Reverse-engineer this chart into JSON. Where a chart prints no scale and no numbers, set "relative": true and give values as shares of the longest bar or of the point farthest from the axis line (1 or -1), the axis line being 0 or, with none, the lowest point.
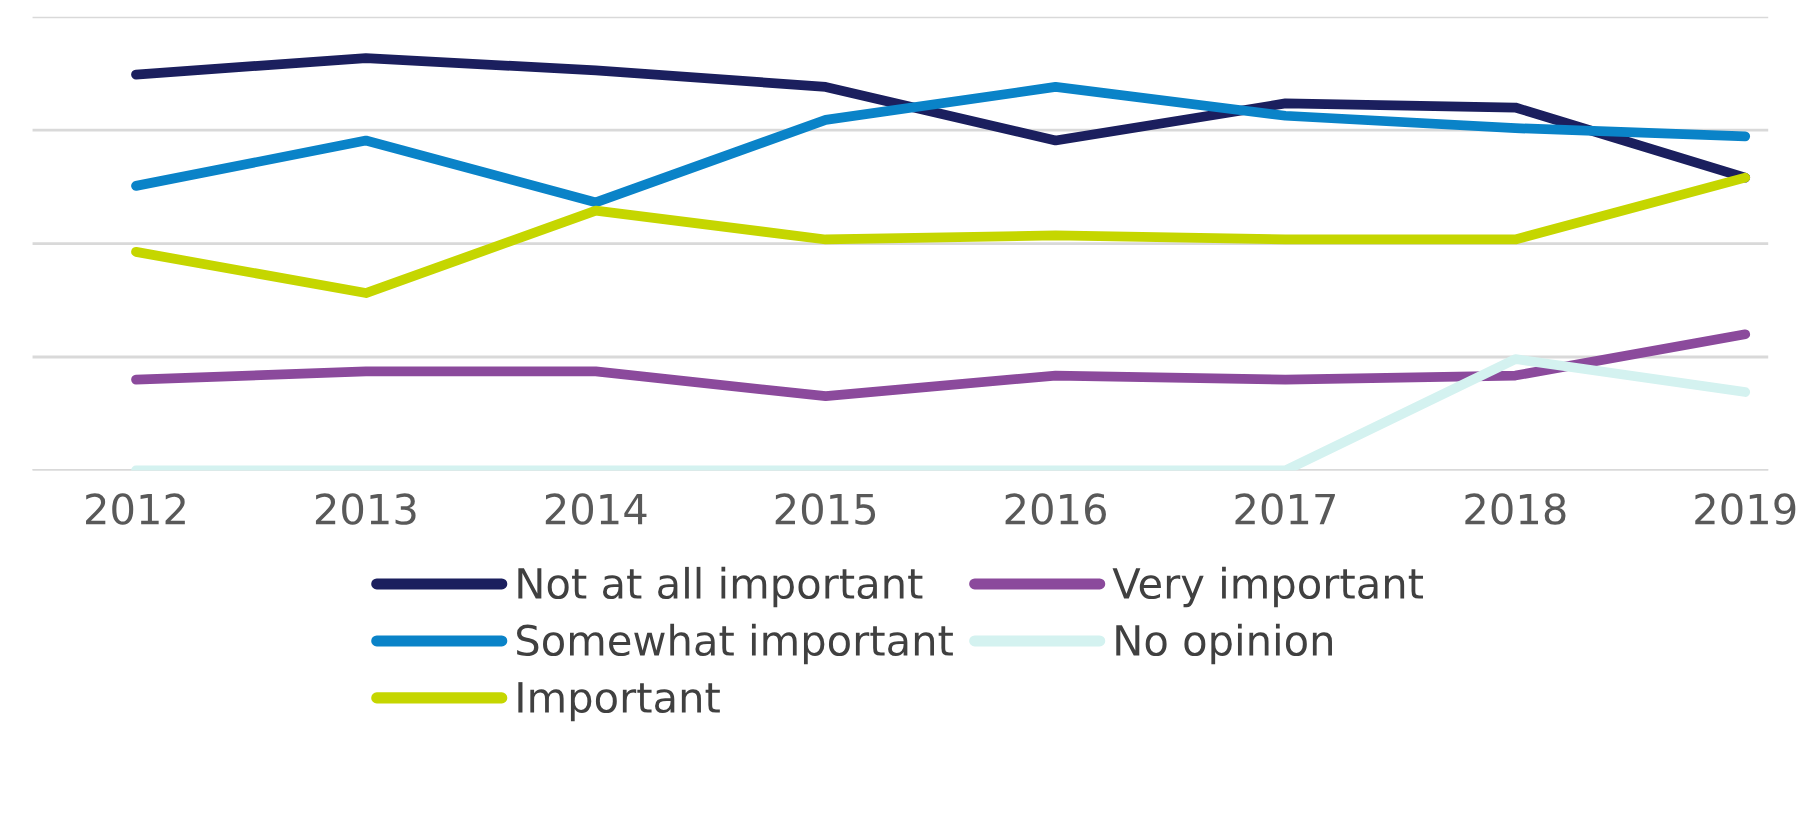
{
  "chart_data": {
    "type": "line",
    "relative": true,
    "grid": "y",
    "legend": "bottom",
    "marker": "none",
    "line_style": "solid",
    "categories": [
      "2012",
      "2013",
      "2014",
      "2015",
      "2016",
      "2017",
      "2018",
      "2019"
    ],
    "series": [
      {
        "name": "Not at all important",
        "color": "#1b1f5e",
        "values": [
          0.96,
          1.0,
          0.97,
          0.93,
          0.8,
          0.89,
          0.88,
          0.71
        ]
      },
      {
        "name": "Somewhat important",
        "color": "#0a83c8",
        "values": [
          0.69,
          0.8,
          0.65,
          0.85,
          0.93,
          0.86,
          0.83,
          0.81
        ]
      },
      {
        "name": "Important",
        "color": "#c5d600",
        "values": [
          0.53,
          0.43,
          0.63,
          0.56,
          0.57,
          0.56,
          0.56,
          0.71
        ]
      },
      {
        "name": "Very important",
        "color": "#8b4a9c",
        "values": [
          0.22,
          0.24,
          0.24,
          0.18,
          0.23,
          0.22,
          0.23,
          0.33
        ]
      },
      {
        "name": "No opinion",
        "color": "#d4f2f0",
        "values": [
          0,
          0,
          0,
          0,
          0,
          0,
          0.27,
          0.19
        ]
      }
    ]
  }
}
